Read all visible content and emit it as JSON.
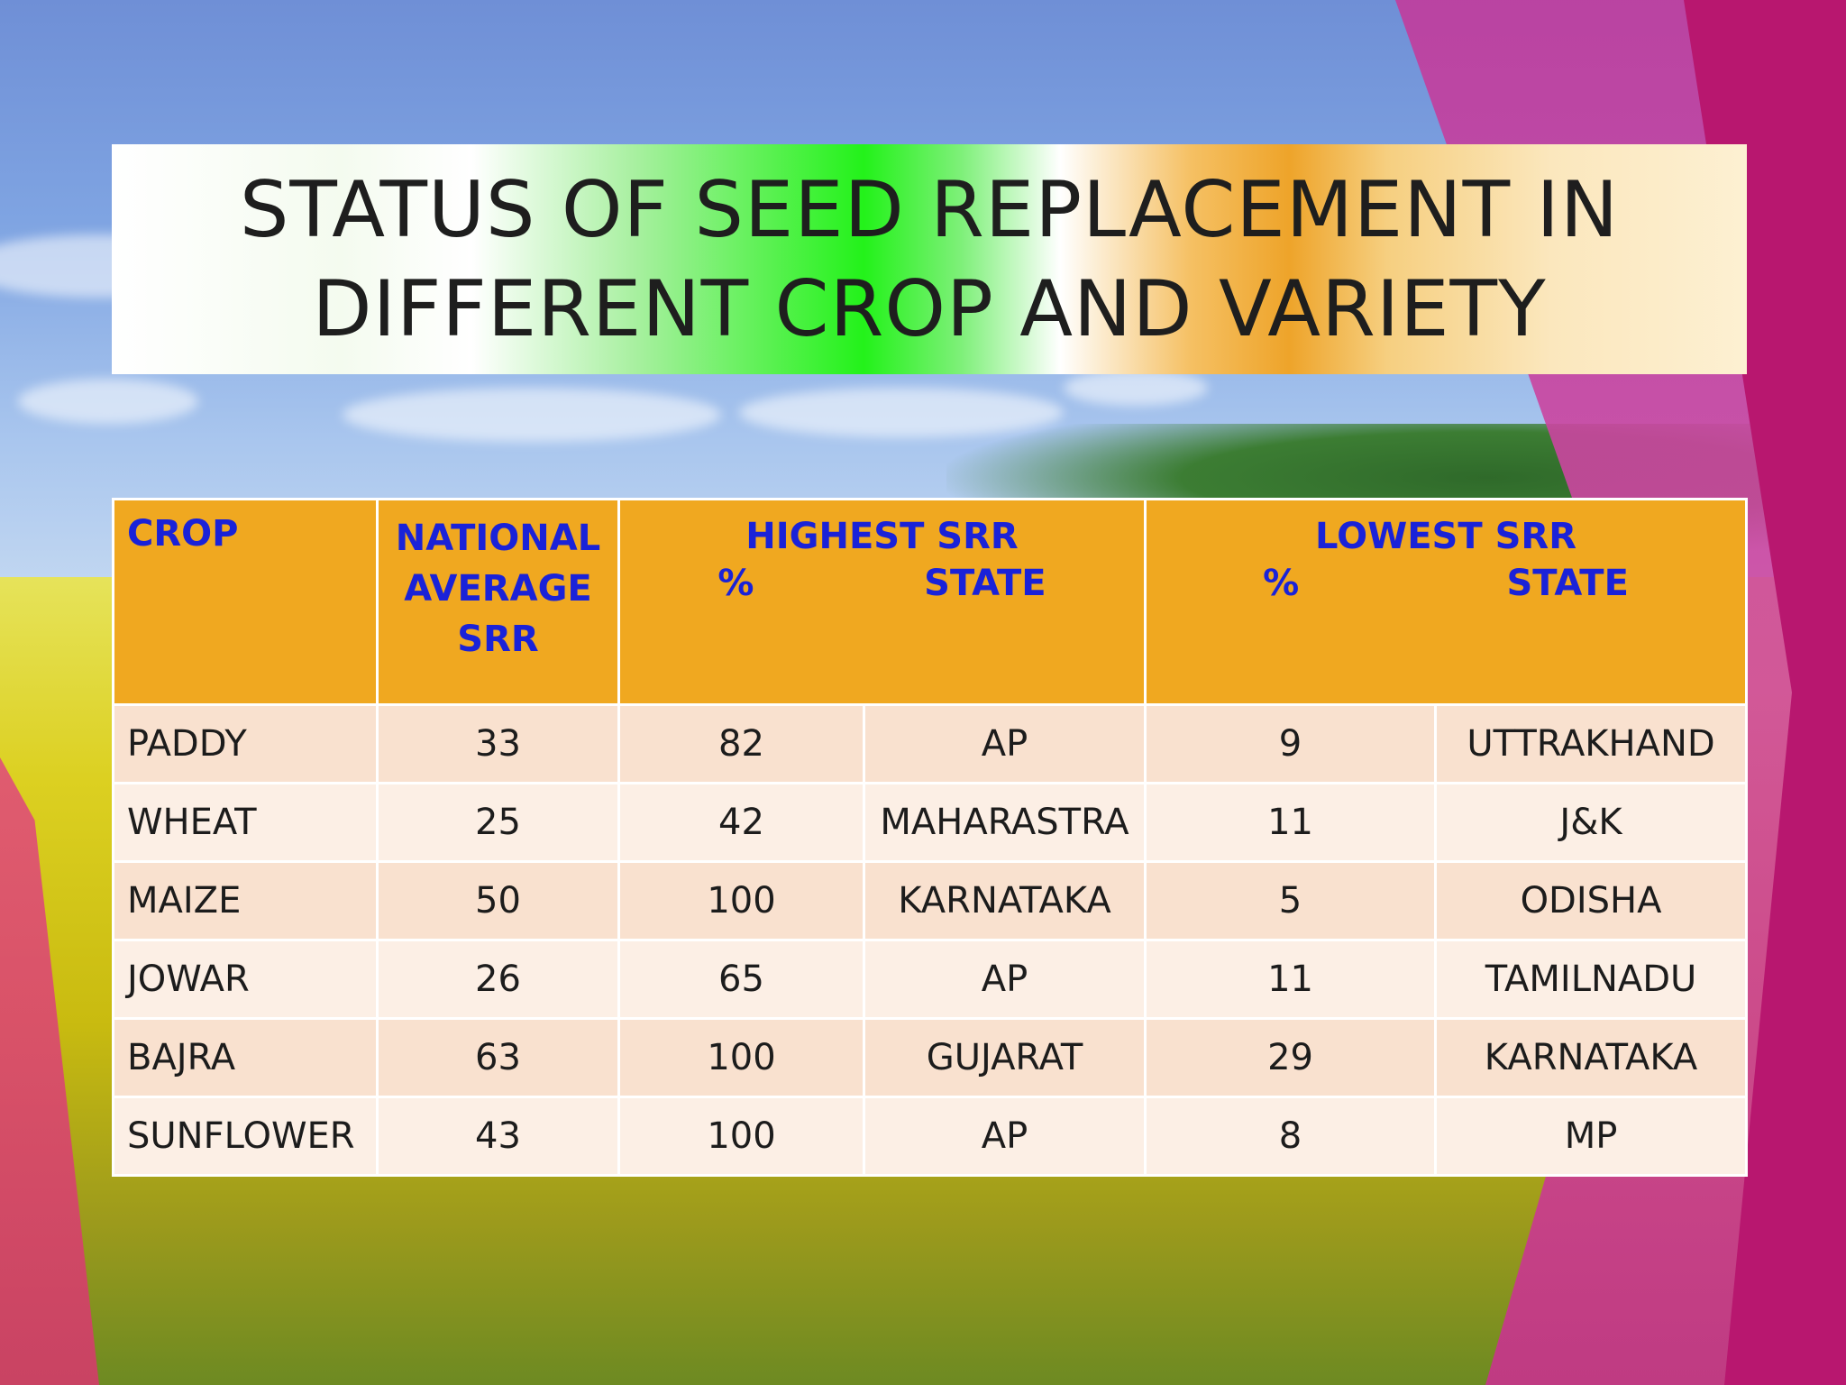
{
  "title": "STATUS OF SEED REPLACEMENT IN\nDIFFERENT CROP AND VARIETY",
  "table": {
    "headers": {
      "crop": "CROP",
      "national": "NATIONAL\nAVERAGE\nSRR",
      "highest": {
        "title": "HIGHEST SRR",
        "pct": "%",
        "state": "STATE"
      },
      "lowest": {
        "title": "LOWEST SRR",
        "pct": "%",
        "state": "STATE"
      }
    },
    "rows": [
      {
        "crop": "PADDY",
        "national": "33",
        "high_pct": "82",
        "high_state": "AP",
        "low_pct": "9",
        "low_state": "UTTRAKHAND"
      },
      {
        "crop": "WHEAT",
        "national": "25",
        "high_pct": "42",
        "high_state": "MAHARASTRA",
        "low_pct": "11",
        "low_state": "J&K"
      },
      {
        "crop": "MAIZE",
        "national": "50",
        "high_pct": "100",
        "high_state": "KARNATAKA",
        "low_pct": "5",
        "low_state": "ODISHA"
      },
      {
        "crop": "JOWAR",
        "national": "26",
        "high_pct": "65",
        "high_state": "AP",
        "low_pct": "11",
        "low_state": "TAMILNADU"
      },
      {
        "crop": "BAJRA",
        "national": "63",
        "high_pct": "100",
        "high_state": "GUJARAT",
        "low_pct": "29",
        "low_state": "KARNATAKA"
      },
      {
        "crop": "SUNFLOWER",
        "national": "43",
        "high_pct": "100",
        "high_state": "AP",
        "low_pct": "8",
        "low_state": "MP"
      }
    ]
  },
  "colors": {
    "header_bg": "#f0a820",
    "header_text": "#1a22d8",
    "row_odd": "#f9e1cf",
    "row_even": "#fcefe5",
    "accent_pink": "#c23b9c"
  }
}
